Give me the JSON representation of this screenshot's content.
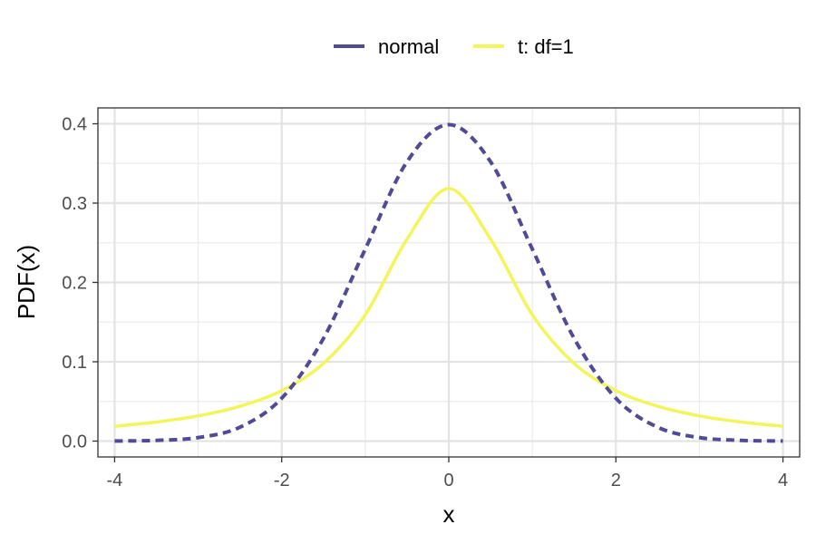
{
  "chart_data": {
    "type": "line",
    "xlabel": "x",
    "ylabel": "PDF(x)",
    "xlim": [
      -4.2,
      4.2
    ],
    "ylim": [
      -0.02,
      0.42
    ],
    "x_ticks": [
      -4,
      -2,
      0,
      2,
      4
    ],
    "y_ticks": [
      0.0,
      0.1,
      0.2,
      0.3,
      0.4
    ],
    "x_tick_labels": [
      "-4",
      "-2",
      "0",
      "2",
      "4"
    ],
    "y_tick_labels": [
      "0.0",
      "0.1",
      "0.2",
      "0.3",
      "0.4"
    ],
    "grid": true,
    "legend_position": "top",
    "series": [
      {
        "name": "normal",
        "color": "#514b95",
        "dash": "dashed",
        "x": [
          -4,
          -3.5,
          -3,
          -2.5,
          -2,
          -1.5,
          -1,
          -0.5,
          0,
          0.5,
          1,
          1.5,
          2,
          2.5,
          3,
          3.5,
          4
        ],
        "values": [
          0.0001,
          0.0009,
          0.0044,
          0.0175,
          0.054,
          0.1295,
          0.242,
          0.3521,
          0.3989,
          0.3521,
          0.242,
          0.1295,
          0.054,
          0.0175,
          0.0044,
          0.0009,
          0.0001
        ]
      },
      {
        "name": "t: df=1",
        "color": "#f2f55b",
        "dash": "solid",
        "x": [
          -4,
          -3.5,
          -3,
          -2.5,
          -2,
          -1.5,
          -1,
          -0.5,
          0,
          0.5,
          1,
          1.5,
          2,
          2.5,
          3,
          3.5,
          4
        ],
        "values": [
          0.0187,
          0.024,
          0.0318,
          0.0439,
          0.0637,
          0.0979,
          0.1592,
          0.2546,
          0.3183,
          0.2546,
          0.1592,
          0.0979,
          0.0637,
          0.0439,
          0.0318,
          0.024,
          0.0187
        ]
      }
    ]
  }
}
